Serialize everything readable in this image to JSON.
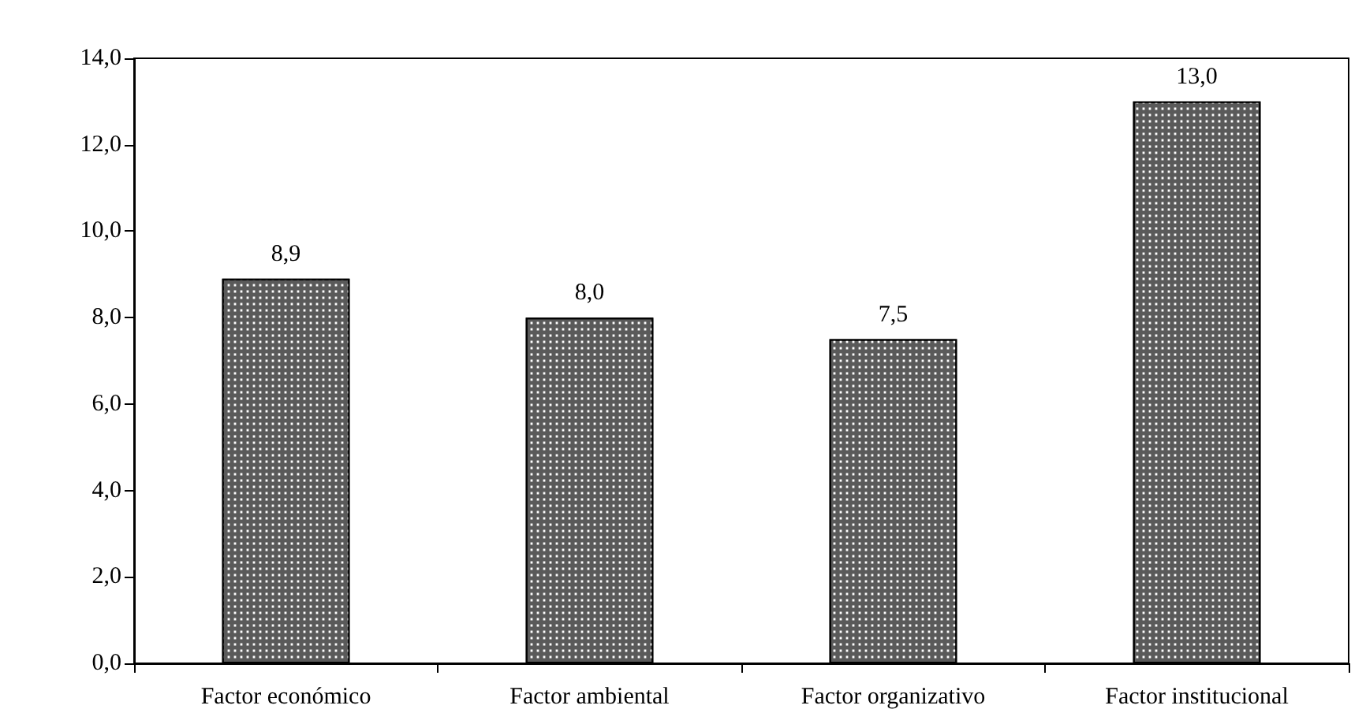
{
  "chart_data": {
    "type": "bar",
    "categories": [
      "Factor económico",
      "Factor ambiental",
      "Factor organizativo",
      "Factor institucional"
    ],
    "values": [
      8.9,
      8.0,
      7.5,
      13.0
    ],
    "value_labels": [
      "8,9",
      "8,0",
      "7,5",
      "13,0"
    ],
    "color": "#5a5a5a",
    "ylim": [
      0,
      14
    ],
    "yticks": [
      {
        "value": 0,
        "label": "0,0"
      },
      {
        "value": 2,
        "label": "2,0"
      },
      {
        "value": 4,
        "label": "4,0"
      },
      {
        "value": 6,
        "label": "6,0"
      },
      {
        "value": 8,
        "label": "8,0"
      },
      {
        "value": 10,
        "label": "10,0"
      },
      {
        "value": 12,
        "label": "12,0"
      },
      {
        "value": 14,
        "label": "14,0"
      }
    ],
    "grid": false
  }
}
